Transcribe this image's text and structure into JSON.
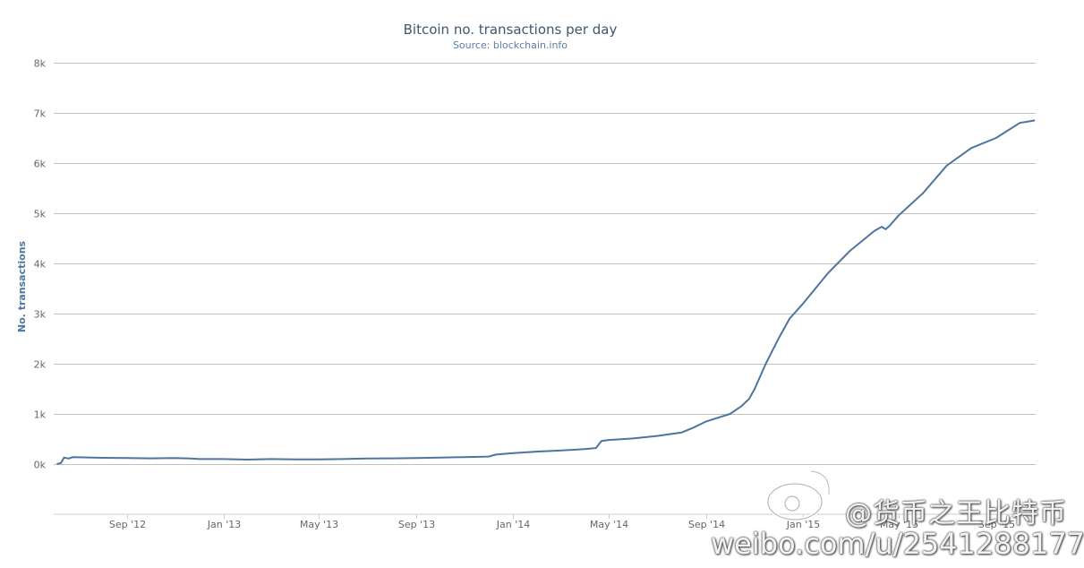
{
  "chart_data": {
    "type": "line",
    "title": "Bitcoin no. transactions per day",
    "subtitle": "Source: blockchain.info",
    "ylabel": "No. transactions",
    "xlabel": "",
    "ylim": [
      -1000,
      8000
    ],
    "yticks": [
      "8k",
      "7k",
      "6k",
      "5k",
      "4k",
      "3k",
      "2k",
      "1k",
      "0k"
    ],
    "ytick_values": [
      8000,
      7000,
      6000,
      5000,
      4000,
      3000,
      2000,
      1000,
      0
    ],
    "xticks": [
      "Sep '12",
      "Jan '13",
      "May '13",
      "Sep '13",
      "Jan '14",
      "May '14",
      "Sep '14",
      "Jan '15",
      "May '15",
      "Sep '15"
    ],
    "xtick_dates": [
      "2012-09-01",
      "2013-01-01",
      "2013-05-01",
      "2013-09-01",
      "2014-01-01",
      "2014-05-01",
      "2014-09-01",
      "2015-01-01",
      "2015-05-01",
      "2015-09-01"
    ],
    "xlim": [
      "2012-06-01",
      "2015-10-21"
    ],
    "grid": true,
    "line_color": "#4d759e",
    "series": [
      {
        "x": [
          "2012-06-05",
          "2012-06-10",
          "2012-06-14",
          "2012-06-20",
          "2012-06-25",
          "2012-07-01",
          "2012-08-01",
          "2012-09-01",
          "2012-10-01",
          "2012-11-01",
          "2012-11-20",
          "2012-12-01",
          "2013-01-01",
          "2013-02-01",
          "2013-03-01",
          "2013-04-01",
          "2013-05-01",
          "2013-06-01",
          "2013-07-01",
          "2013-08-01",
          "2013-09-01",
          "2013-10-01",
          "2013-11-01",
          "2013-12-01",
          "2013-12-10",
          "2014-01-01",
          "2014-02-01",
          "2014-03-01",
          "2014-04-01",
          "2014-04-15",
          "2014-04-22",
          "2014-05-01",
          "2014-06-01",
          "2014-07-01",
          "2014-08-01",
          "2014-08-15",
          "2014-09-01",
          "2014-10-01",
          "2014-10-15",
          "2014-10-25",
          "2014-11-01",
          "2014-11-15",
          "2014-12-01",
          "2014-12-15",
          "2015-01-01",
          "2015-02-01",
          "2015-03-01",
          "2015-04-01",
          "2015-04-10",
          "2015-04-15",
          "2015-04-20",
          "2015-05-01",
          "2015-06-01",
          "2015-07-01",
          "2015-08-01",
          "2015-09-01",
          "2015-10-01",
          "2015-10-20"
        ],
        "values": [
          0,
          20,
          130,
          110,
          140,
          135,
          125,
          120,
          115,
          120,
          110,
          100,
          100,
          90,
          100,
          95,
          95,
          100,
          110,
          115,
          120,
          130,
          140,
          150,
          190,
          220,
          250,
          270,
          300,
          320,
          460,
          480,
          510,
          560,
          630,
          720,
          850,
          1000,
          1150,
          1300,
          1500,
          2000,
          2500,
          2900,
          3200,
          3800,
          4250,
          4650,
          4730,
          4680,
          4750,
          4950,
          5400,
          5950,
          6300,
          6500,
          6800,
          6850
        ]
      }
    ]
  },
  "watermark": {
    "handle": "@货币之王比特币",
    "url": "weibo.com/u/2541288177",
    "logo_icon": "weibo-logo-icon"
  }
}
